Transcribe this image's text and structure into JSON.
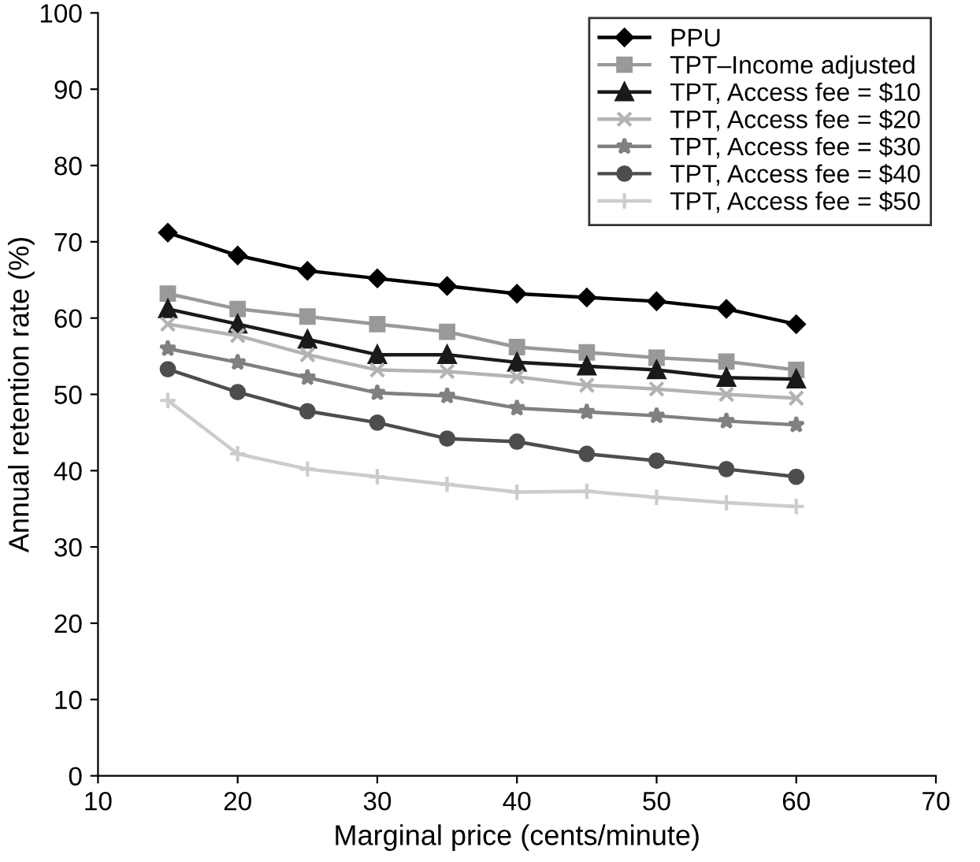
{
  "chart_data": {
    "type": "line",
    "xlabel": "Marginal price (cents/minute)",
    "ylabel": "Annual retention rate (%)",
    "x": [
      15,
      20,
      25,
      30,
      35,
      40,
      45,
      50,
      55,
      60
    ],
    "xlim": [
      10,
      70
    ],
    "xticks": [
      10,
      20,
      30,
      40,
      50,
      60,
      70
    ],
    "ylim": [
      0,
      100
    ],
    "yticks": [
      0,
      10,
      20,
      30,
      40,
      50,
      60,
      70,
      80,
      90,
      100
    ],
    "grid": false,
    "legend": "top right",
    "series": [
      {
        "name": "PPU",
        "color": "#000000",
        "marker": "diamond",
        "values": [
          71.2,
          68.2,
          66.2,
          65.2,
          64.2,
          63.2,
          62.7,
          62.2,
          61.2,
          59.2
        ]
      },
      {
        "name": "TPT–Income adjusted",
        "color": "#999999",
        "marker": "square",
        "values": [
          63.2,
          61.2,
          60.2,
          59.2,
          58.2,
          56.2,
          55.5,
          54.8,
          54.3,
          53.2
        ]
      },
      {
        "name": "TPT, Access fee = $10",
        "color": "#1a1a1a",
        "marker": "triangle",
        "values": [
          61.2,
          59.2,
          57.2,
          55.2,
          55.2,
          54.2,
          53.7,
          53.2,
          52.2,
          52.0
        ]
      },
      {
        "name": "TPT, Access fee = $20",
        "color": "#b3b3b3",
        "marker": "cross",
        "values": [
          59.2,
          57.7,
          55.2,
          53.2,
          53.0,
          52.3,
          51.2,
          50.7,
          50.0,
          49.5
        ]
      },
      {
        "name": "TPT, Access fee = $30",
        "color": "#808080",
        "marker": "star",
        "values": [
          56.0,
          54.2,
          52.2,
          50.2,
          49.8,
          48.2,
          47.7,
          47.2,
          46.5,
          46.0
        ]
      },
      {
        "name": "TPT, Access fee = $40",
        "color": "#4d4d4d",
        "marker": "circle",
        "values": [
          53.3,
          50.3,
          47.8,
          46.3,
          44.2,
          43.8,
          42.2,
          41.3,
          40.2,
          39.2
        ]
      },
      {
        "name": "TPT, Access fee = $50",
        "color": "#cccccc",
        "marker": "plus",
        "values": [
          49.2,
          42.2,
          40.2,
          39.2,
          38.2,
          37.2,
          37.3,
          36.5,
          35.8,
          35.3
        ]
      }
    ]
  }
}
